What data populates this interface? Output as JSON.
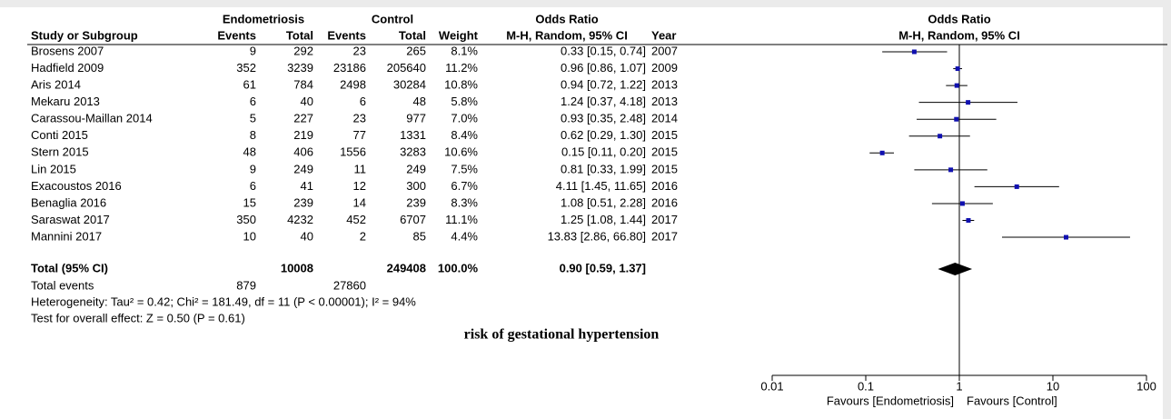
{
  "chart_data": {
    "type": "forest",
    "title": "risk of gestational hypertension",
    "header": {
      "group_e": "Endometriosis",
      "group_c": "Control",
      "or_title": "Odds Ratio",
      "study": "Study or Subgroup",
      "events_e": "Events",
      "total_e": "Total",
      "events_c": "Events",
      "total_c": "Total",
      "weight": "Weight",
      "method": "M-H, Random, 95% CI",
      "year": "Year",
      "plot_title": "Odds Ratio",
      "plot_method": "M-H, Random, 95% CI"
    },
    "rows": [
      {
        "name": "Brosens 2007",
        "events_e": 9,
        "total_e": 292,
        "events_c": 23,
        "total_c": 265,
        "weight": "8.1%",
        "or": 0.33,
        "lower": 0.15,
        "upper": 0.74,
        "ci_label": "0.33 [0.15, 0.74]",
        "year": 2007
      },
      {
        "name": "Hadfield 2009",
        "events_e": 352,
        "total_e": 3239,
        "events_c": 23186,
        "total_c": 205640,
        "weight": "11.2%",
        "or": 0.96,
        "lower": 0.86,
        "upper": 1.07,
        "ci_label": "0.96 [0.86, 1.07]",
        "year": 2009
      },
      {
        "name": "Aris 2014",
        "events_e": 61,
        "total_e": 784,
        "events_c": 2498,
        "total_c": 30284,
        "weight": "10.8%",
        "or": 0.94,
        "lower": 0.72,
        "upper": 1.22,
        "ci_label": "0.94 [0.72, 1.22]",
        "year": 2013
      },
      {
        "name": "Mekaru 2013",
        "events_e": 6,
        "total_e": 40,
        "events_c": 6,
        "total_c": 48,
        "weight": "5.8%",
        "or": 1.24,
        "lower": 0.37,
        "upper": 4.18,
        "ci_label": "1.24 [0.37, 4.18]",
        "year": 2013
      },
      {
        "name": "Carassou-Maillan 2014",
        "events_e": 5,
        "total_e": 227,
        "events_c": 23,
        "total_c": 977,
        "weight": "7.0%",
        "or": 0.93,
        "lower": 0.35,
        "upper": 2.48,
        "ci_label": "0.93 [0.35, 2.48]",
        "year": 2014
      },
      {
        "name": "Conti 2015",
        "events_e": 8,
        "total_e": 219,
        "events_c": 77,
        "total_c": 1331,
        "weight": "8.4%",
        "or": 0.62,
        "lower": 0.29,
        "upper": 1.3,
        "ci_label": "0.62 [0.29, 1.30]",
        "year": 2015
      },
      {
        "name": "Stern 2015",
        "events_e": 48,
        "total_e": 406,
        "events_c": 1556,
        "total_c": 3283,
        "weight": "10.6%",
        "or": 0.15,
        "lower": 0.11,
        "upper": 0.2,
        "ci_label": "0.15 [0.11, 0.20]",
        "year": 2015
      },
      {
        "name": "Lin 2015",
        "events_e": 9,
        "total_e": 249,
        "events_c": 11,
        "total_c": 249,
        "weight": "7.5%",
        "or": 0.81,
        "lower": 0.33,
        "upper": 1.99,
        "ci_label": "0.81 [0.33, 1.99]",
        "year": 2015
      },
      {
        "name": "Exacoustos 2016",
        "events_e": 6,
        "total_e": 41,
        "events_c": 12,
        "total_c": 300,
        "weight": "6.7%",
        "or": 4.11,
        "lower": 1.45,
        "upper": 11.65,
        "ci_label": "4.11 [1.45, 11.65]",
        "year": 2016
      },
      {
        "name": "Benaglia 2016",
        "events_e": 15,
        "total_e": 239,
        "events_c": 14,
        "total_c": 239,
        "weight": "8.3%",
        "or": 1.08,
        "lower": 0.51,
        "upper": 2.28,
        "ci_label": "1.08 [0.51, 2.28]",
        "year": 2016
      },
      {
        "name": "Saraswat 2017",
        "events_e": 350,
        "total_e": 4232,
        "events_c": 452,
        "total_c": 6707,
        "weight": "11.1%",
        "or": 1.25,
        "lower": 1.08,
        "upper": 1.44,
        "ci_label": "1.25 [1.08, 1.44]",
        "year": 2017
      },
      {
        "name": "Mannini 2017",
        "events_e": 10,
        "total_e": 40,
        "events_c": 2,
        "total_c": 85,
        "weight": "4.4%",
        "or": 13.83,
        "lower": 2.86,
        "upper": 66.8,
        "ci_label": "13.83 [2.86, 66.80]",
        "year": 2017
      }
    ],
    "total": {
      "name": "Total (95% CI)",
      "total_e": 10008,
      "total_c": 249408,
      "weight": "100.0%",
      "or": 0.9,
      "lower": 0.59,
      "upper": 1.37,
      "ci_label": "0.90 [0.59, 1.37]"
    },
    "total_events": {
      "name": "Total events",
      "events_e": 879,
      "events_c": 27860
    },
    "heterogeneity": "Heterogeneity: Tau² = 0.42; Chi² = 181.49, df = 11 (P < 0.00001); I² = 94%",
    "overall_effect": "Test for overall effect: Z = 0.50 (P = 0.61)",
    "xscale": "log",
    "xlim": [
      0.01,
      100
    ],
    "xticks": [
      0.01,
      0.1,
      1,
      10,
      100
    ],
    "favours_left": "Favours [Endometriosis]",
    "favours_right": "Favours [Control]",
    "marker_color": "#1010b0",
    "line_color": "#000000"
  }
}
